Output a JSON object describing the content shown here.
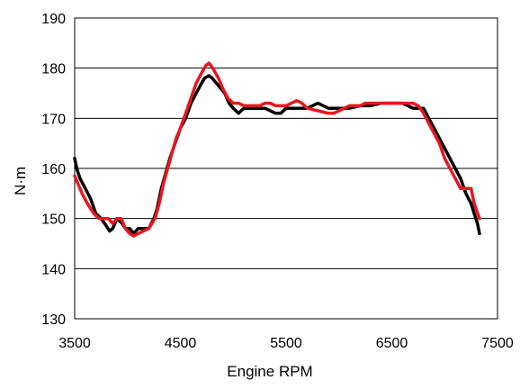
{
  "chart_data": {
    "type": "line",
    "title": "",
    "xlabel": "Engine RPM",
    "ylabel": "N·m",
    "xlim": [
      3500,
      7500
    ],
    "ylim": [
      130,
      190
    ],
    "x_ticks": [
      "3500",
      "4500",
      "5500",
      "6500",
      "7500"
    ],
    "y_ticks": [
      "130",
      "140",
      "150",
      "160",
      "170",
      "180",
      "190"
    ],
    "grid": "horizontal",
    "legend": "none",
    "series": [
      {
        "color": "#000000",
        "x": [
          3500,
          3520,
          3550,
          3600,
          3650,
          3700,
          3750,
          3800,
          3830,
          3860,
          3900,
          3950,
          3980,
          4020,
          4060,
          4100,
          4150,
          4200,
          4250,
          4280,
          4320,
          4360,
          4400,
          4450,
          4500,
          4550,
          4600,
          4650,
          4700,
          4730,
          4770,
          4800,
          4840,
          4880,
          4920,
          4960,
          5000,
          5050,
          5100,
          5150,
          5200,
          5300,
          5400,
          5450,
          5500,
          5600,
          5700,
          5800,
          5900,
          6000,
          6050,
          6100,
          6200,
          6300,
          6400,
          6500,
          6600,
          6700,
          6800,
          6850,
          6900,
          6950,
          7000,
          7050,
          7100,
          7150,
          7200,
          7250,
          7280,
          7310,
          7330
        ],
        "y": [
          162,
          160,
          158,
          156,
          154,
          151,
          150,
          148.5,
          147.5,
          148,
          150,
          149,
          148,
          148,
          147,
          148,
          148,
          148,
          150,
          152,
          156,
          159,
          162,
          165,
          168,
          170,
          173,
          175,
          177,
          178,
          178.5,
          178,
          177,
          176,
          175,
          173,
          172,
          171,
          172,
          172,
          172,
          172,
          171,
          171,
          172,
          172,
          172,
          173,
          172,
          172,
          172,
          172,
          172.5,
          172.5,
          173,
          173,
          173,
          172,
          172,
          170,
          168,
          166,
          164,
          162,
          160,
          158,
          155,
          153,
          151,
          149,
          147
        ]
      },
      {
        "color": "#e8171f",
        "x": [
          3500,
          3530,
          3570,
          3620,
          3680,
          3730,
          3780,
          3820,
          3860,
          3900,
          3940,
          3980,
          4020,
          4060,
          4100,
          4150,
          4200,
          4260,
          4300,
          4340,
          4380,
          4420,
          4460,
          4500,
          4550,
          4600,
          4650,
          4700,
          4740,
          4770,
          4790,
          4820,
          4860,
          4900,
          4950,
          5000,
          5050,
          5100,
          5150,
          5200,
          5250,
          5300,
          5350,
          5400,
          5450,
          5500,
          5550,
          5600,
          5650,
          5700,
          5800,
          5900,
          5950,
          6000,
          6100,
          6200,
          6250,
          6300,
          6400,
          6500,
          6600,
          6700,
          6750,
          6800,
          6850,
          6900,
          6950,
          7000,
          7050,
          7100,
          7150,
          7200,
          7250,
          7280,
          7330
        ],
        "y": [
          158.5,
          157,
          155,
          153,
          151,
          150,
          150,
          150,
          149,
          150,
          150,
          148,
          147,
          146.5,
          147,
          147.5,
          148,
          150,
          153,
          157,
          160,
          163,
          166,
          168,
          171,
          174,
          177,
          179,
          180.5,
          181,
          180.5,
          179.5,
          178,
          176,
          174,
          173,
          173,
          172.5,
          172.5,
          172.5,
          172.5,
          173,
          173,
          172.5,
          172.5,
          172.5,
          173,
          173.5,
          173,
          172,
          171.5,
          171,
          171,
          171.5,
          172.5,
          172.5,
          173,
          173,
          173,
          173,
          173,
          173,
          172.5,
          171,
          169,
          167,
          165,
          162,
          160,
          158,
          156,
          156,
          156,
          153,
          150
        ]
      }
    ]
  }
}
